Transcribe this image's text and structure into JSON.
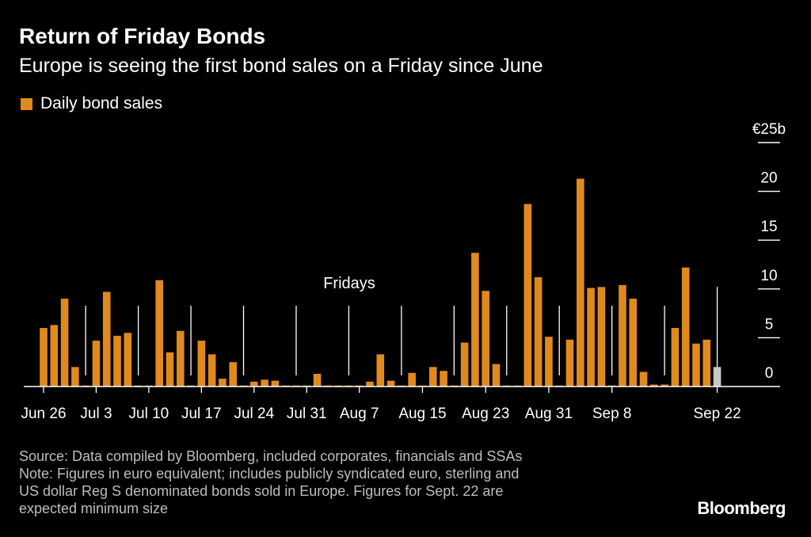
{
  "title": "Return of Friday Bonds",
  "subtitle": "Europe is seeing the first bond sales on a Friday since June",
  "legend": {
    "label": "Daily bond sales",
    "color": "#e08a1e"
  },
  "footnotes": {
    "source": "Source: Data compiled by Bloomberg, included corporates, financials and SSAs",
    "note_line1": "Note: Figures in euro equivalent; includes publicly syndicated euro, sterling and",
    "note_line2": "US dollar Reg S denominated bonds sold in Europe. Figures for Sept. 22 are",
    "note_line3": "expected minimum size"
  },
  "logo": "Bloomberg",
  "colors": {
    "bar": "#e08a1e",
    "expected": "#c8c8c8",
    "axis": "#ffffff"
  },
  "chart_data": {
    "type": "bar",
    "title": "Return of Friday Bonds",
    "series_name": "Daily bond sales",
    "unit_label": "€25b",
    "ylim": [
      0,
      25
    ],
    "yticks": [
      0,
      5,
      10,
      15,
      20,
      25
    ],
    "ytick_labels": [
      "0",
      "5",
      "10",
      "15",
      "20",
      "€25b"
    ],
    "x_labels": [
      {
        "label": "Jun 26",
        "index": 0
      },
      {
        "label": "Jul 3",
        "index": 5
      },
      {
        "label": "Jul 10",
        "index": 10
      },
      {
        "label": "Jul 17",
        "index": 15
      },
      {
        "label": "Jul 24",
        "index": 20
      },
      {
        "label": "Jul 31",
        "index": 25
      },
      {
        "label": "Aug 7",
        "index": 30
      },
      {
        "label": "Aug 15",
        "index": 36
      },
      {
        "label": "Aug 23",
        "index": 42
      },
      {
        "label": "Aug 31",
        "index": 48
      },
      {
        "label": "Sep 8",
        "index": 54
      },
      {
        "label": "Sep 22",
        "index": 64
      }
    ],
    "friday_annotation": "Fridays",
    "friday_indices": [
      4,
      9,
      14,
      19,
      24,
      29,
      34,
      39,
      44,
      49,
      54,
      59,
      64
    ],
    "expected_index": 64,
    "values": [
      6,
      6.3,
      9,
      2,
      0.1,
      4.7,
      9.7,
      5.2,
      5.5,
      0.1,
      0.1,
      10.9,
      3.5,
      5.7,
      0.1,
      4.7,
      3.3,
      0.8,
      2.5,
      0.1,
      0.5,
      0.7,
      0.6,
      0.1,
      0.1,
      0.1,
      1.3,
      0.1,
      0.1,
      0.1,
      0.1,
      0.5,
      3.3,
      0.6,
      0.1,
      1.4,
      0.1,
      2,
      1.6,
      0.1,
      4.5,
      13.7,
      9.8,
      2.3,
      0.1,
      0.1,
      18.7,
      11.2,
      5.1,
      0.1,
      4.8,
      21.3,
      10.1,
      10.2,
      0.1,
      10.4,
      9,
      1.5,
      0.2,
      0.2,
      6,
      12.2,
      4.4,
      4.8,
      2
    ]
  }
}
